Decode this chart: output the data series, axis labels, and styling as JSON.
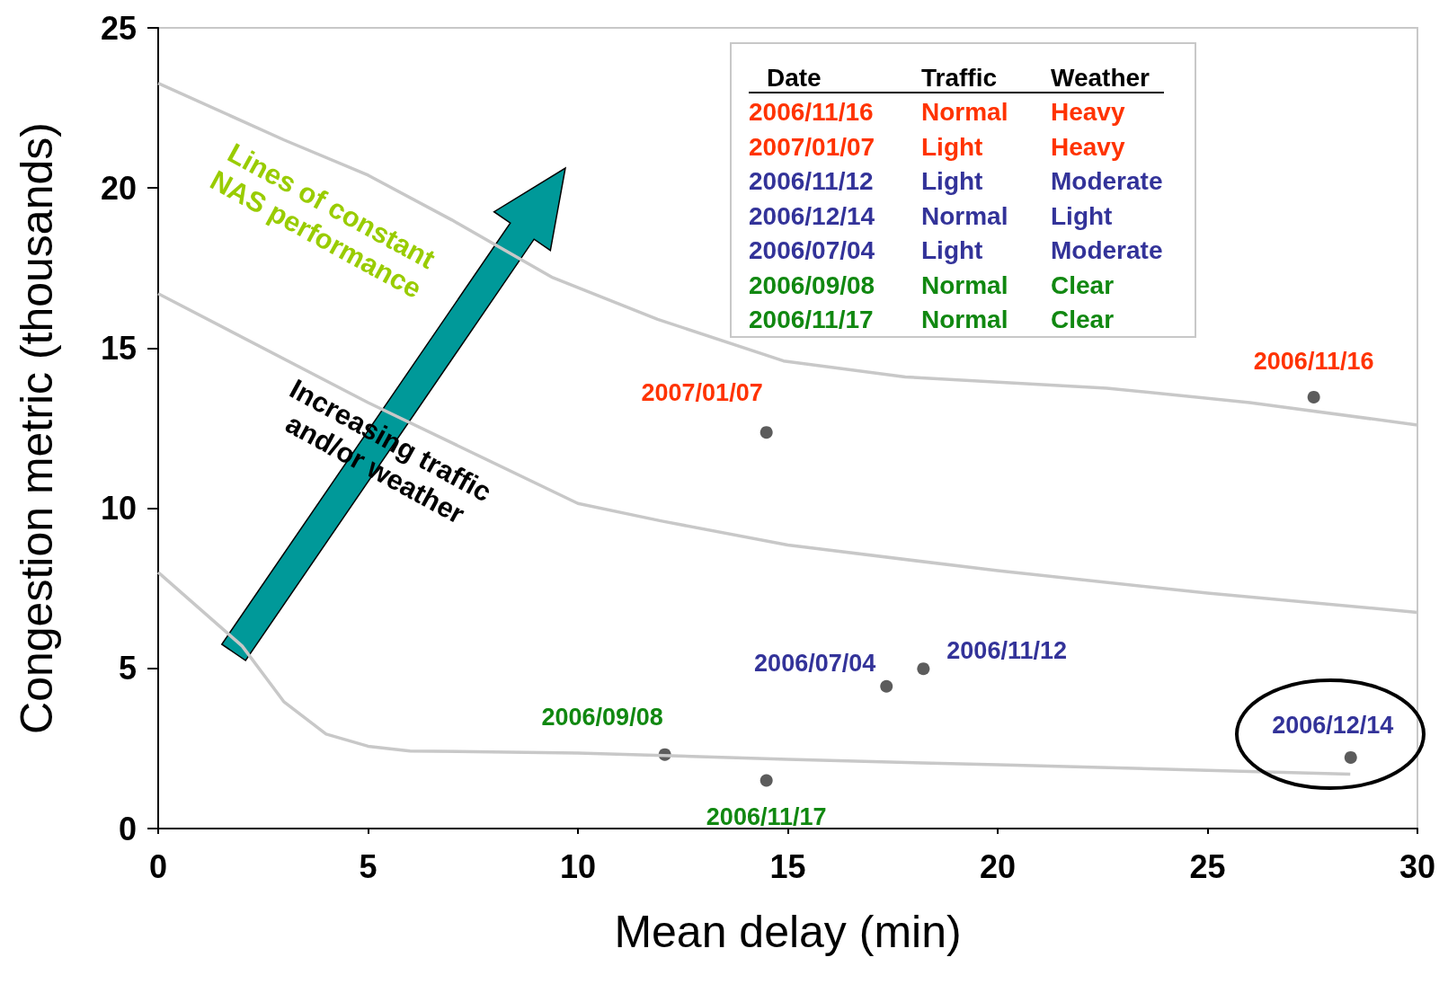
{
  "chart_data": {
    "type": "scatter",
    "xlabel": "Mean delay (min)",
    "ylabel": "Congestion metric (thousands)",
    "xlim": [
      0,
      30
    ],
    "xticks": [
      0,
      5,
      10,
      15,
      20,
      25,
      30
    ],
    "ylim": [
      0,
      25
    ],
    "yticks": [
      0,
      5,
      10,
      15,
      20,
      25
    ],
    "grid": false,
    "series": [
      {
        "type": "scatter",
        "marker": "circle",
        "color": "#333333",
        "x": [
          27.53,
          14.49,
          17.35,
          18.23,
          12.07,
          14.49,
          28.41
        ],
        "values": [
          13.47,
          12.37,
          4.44,
          4.99,
          2.31,
          1.5,
          2.22
        ]
      },
      {
        "type": "line",
        "marker": "none",
        "color": "#c8c8c8",
        "x": [
          0,
          3,
          5,
          7,
          9.4,
          11.9,
          14.9,
          17.8,
          22.6,
          26,
          30
        ],
        "values": [
          23.27,
          21.5,
          20.4,
          19.0,
          17.2,
          15.9,
          14.6,
          14.1,
          13.75,
          13.3,
          12.6
        ]
      },
      {
        "type": "line",
        "marker": "none",
        "color": "#c8c8c8",
        "x": [
          0,
          5,
          10,
          12,
          15,
          20,
          25,
          30
        ],
        "values": [
          16.7,
          13.3,
          10.15,
          9.6,
          8.85,
          8.05,
          7.35,
          6.75
        ]
      },
      {
        "type": "line",
        "marker": "none",
        "color": "#c8c8c8",
        "x": [
          0,
          2,
          3,
          4,
          5,
          6,
          10,
          15,
          20,
          25,
          28.4
        ],
        "values": [
          8.0,
          5.7,
          3.95,
          2.95,
          2.57,
          2.42,
          2.36,
          2.16,
          1.99,
          1.82,
          1.7
        ]
      }
    ],
    "annotations": [
      {
        "text": "2006/11/16",
        "x": 27.53,
        "y": 13.47
      },
      {
        "text": "2007/01/07",
        "x": 14.49,
        "y": 12.37
      },
      {
        "text": "2006/07/04",
        "x": 17.35,
        "y": 4.44
      },
      {
        "text": "2006/11/12",
        "x": 18.23,
        "y": 4.99
      },
      {
        "text": "2006/09/08",
        "x": 12.07,
        "y": 2.31
      },
      {
        "text": "2006/11/17",
        "x": 14.49,
        "y": 1.5
      },
      {
        "text": "2006/12/14",
        "x": 28.41,
        "y": 2.22
      },
      "Lines of constant\nNAS performance",
      "Increasing traffic\nand/or weather",
      "Date",
      "Traffic",
      "Weather",
      "2006/11/16",
      "Normal",
      "Heavy",
      "2007/01/07",
      "Light",
      "Heavy",
      "2006/11/12",
      "Light",
      "Moderate",
      "2006/12/14",
      "Normal",
      "Light",
      "2006/07/04",
      "Light",
      "Moderate",
      "2006/09/08",
      "Normal",
      "Clear",
      "2006/11/17",
      "Normal",
      "Clear"
    ]
  }
}
